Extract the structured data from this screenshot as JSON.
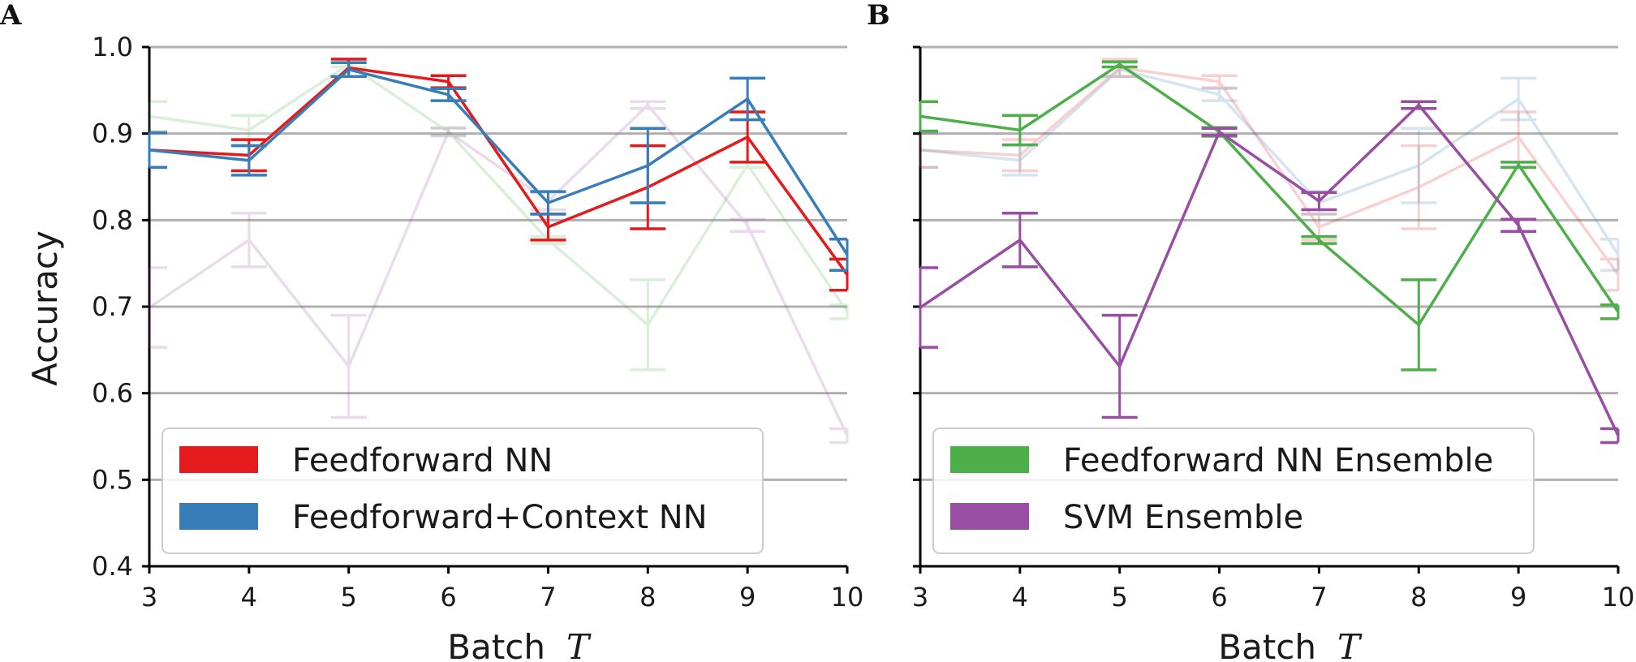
{
  "chart_data": [
    {
      "type": "line",
      "panel_label": "A",
      "xlabel": "Batch",
      "xlabel_symbol": "T",
      "ylabel": "Accuracy",
      "x": [
        3,
        4,
        5,
        6,
        7,
        8,
        9,
        10
      ],
      "xlim": [
        3,
        10
      ],
      "ylim": [
        0.4,
        1.0
      ],
      "xticks": [
        "3",
        "4",
        "5",
        "6",
        "7",
        "8",
        "9",
        "10"
      ],
      "yticks": [
        "0.4",
        "0.5",
        "0.6",
        "0.7",
        "0.8",
        "0.9",
        "1.0"
      ],
      "grid": "horizontal",
      "legend_position": "bottom-left",
      "series": [
        {
          "name": "Feedforward NN",
          "color": "#e41a1c",
          "highlight": true,
          "values": [
            0.881,
            0.875,
            0.976,
            0.96,
            0.792,
            0.838,
            0.896,
            0.737
          ],
          "errors": [
            0.02,
            0.018,
            0.01,
            0.007,
            0.015,
            0.048,
            0.029,
            0.018
          ]
        },
        {
          "name": "Feedforward+Context NN",
          "color": "#377eb8",
          "highlight": true,
          "values": [
            0.881,
            0.869,
            0.974,
            0.945,
            0.82,
            0.863,
            0.94,
            0.76
          ],
          "errors": [
            0.02,
            0.017,
            0.008,
            0.007,
            0.013,
            0.043,
            0.024,
            0.018
          ]
        },
        {
          "name": "Feedforward NN Ensemble",
          "color": "#4daf4a",
          "highlight": false,
          "values": [
            0.92,
            0.904,
            0.98,
            0.902,
            0.777,
            0.679,
            0.864,
            0.694
          ],
          "errors": [
            0.017,
            0.017,
            0.003,
            0.005,
            0.004,
            0.052,
            0.003,
            0.008
          ]
        },
        {
          "name": "SVM Ensemble",
          "color": "#984ea3",
          "highlight": false,
          "values": [
            0.699,
            0.777,
            0.631,
            0.902,
            0.822,
            0.933,
            0.794,
            0.551
          ],
          "errors": [
            0.046,
            0.031,
            0.059,
            0.004,
            0.01,
            0.004,
            0.007,
            0.008
          ]
        }
      ]
    },
    {
      "type": "line",
      "panel_label": "B",
      "xlabel": "Batch",
      "xlabel_symbol": "T",
      "x": [
        3,
        4,
        5,
        6,
        7,
        8,
        9,
        10
      ],
      "xlim": [
        3,
        10
      ],
      "ylim": [
        0.4,
        1.0
      ],
      "xticks": [
        "3",
        "4",
        "5",
        "6",
        "7",
        "8",
        "9",
        "10"
      ],
      "grid": "horizontal",
      "legend_position": "bottom-left",
      "series": [
        {
          "name": "Feedforward NN",
          "color": "#e41a1c",
          "highlight": false,
          "values": [
            0.881,
            0.875,
            0.976,
            0.96,
            0.792,
            0.838,
            0.896,
            0.737
          ],
          "errors": [
            0.02,
            0.018,
            0.01,
            0.007,
            0.015,
            0.048,
            0.029,
            0.018
          ]
        },
        {
          "name": "Feedforward+Context NN",
          "color": "#377eb8",
          "highlight": false,
          "values": [
            0.881,
            0.869,
            0.974,
            0.945,
            0.82,
            0.863,
            0.94,
            0.76
          ],
          "errors": [
            0.02,
            0.017,
            0.008,
            0.007,
            0.013,
            0.043,
            0.024,
            0.018
          ]
        },
        {
          "name": "Feedforward NN Ensemble",
          "color": "#4daf4a",
          "highlight": true,
          "values": [
            0.92,
            0.904,
            0.98,
            0.902,
            0.777,
            0.679,
            0.864,
            0.694
          ],
          "errors": [
            0.017,
            0.017,
            0.003,
            0.005,
            0.004,
            0.052,
            0.003,
            0.008
          ]
        },
        {
          "name": "SVM Ensemble",
          "color": "#984ea3",
          "highlight": true,
          "values": [
            0.699,
            0.777,
            0.631,
            0.902,
            0.822,
            0.933,
            0.794,
            0.551
          ],
          "errors": [
            0.046,
            0.031,
            0.059,
            0.004,
            0.01,
            0.004,
            0.007,
            0.008
          ]
        }
      ]
    }
  ]
}
